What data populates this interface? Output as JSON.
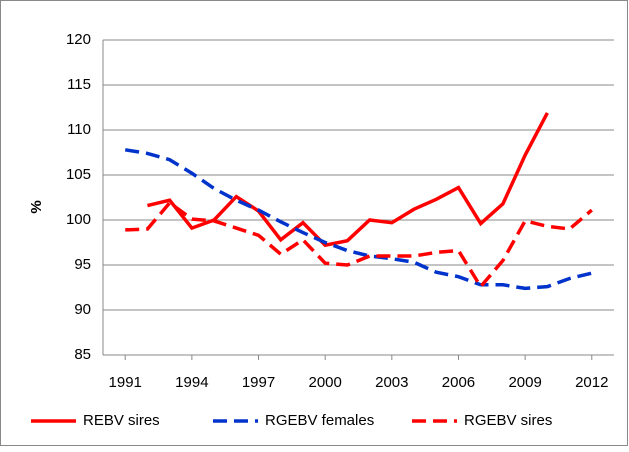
{
  "chart_data": {
    "type": "line",
    "y_label": "%",
    "x": [
      1991,
      1992,
      1993,
      1994,
      1995,
      1996,
      1997,
      1998,
      1999,
      2000,
      2001,
      2002,
      2003,
      2004,
      2005,
      2006,
      2007,
      2008,
      2009,
      2010,
      2011,
      2012
    ],
    "series": [
      {
        "name": "REBV sires",
        "color": "#ff0000",
        "dash": "solid",
        "values": [
          null,
          101.6,
          102.2,
          99.1,
          100,
          102.6,
          101,
          97.8,
          99.7,
          97.2,
          97.7,
          100,
          99.7,
          101.2,
          102.3,
          103.6,
          99.6,
          101.8,
          107.2,
          111.9,
          null,
          null
        ]
      },
      {
        "name": "RGEBV females",
        "color": "#0033cc",
        "dash": "dashed",
        "values": [
          107.8,
          107.4,
          106.7,
          105.2,
          103.5,
          102.2,
          101.1,
          99.8,
          98.6,
          97.5,
          96.6,
          96,
          95.7,
          95.3,
          94.2,
          93.7,
          92.8,
          92.8,
          92.4,
          92.6,
          93.5,
          94.1
        ]
      },
      {
        "name": "RGEBV sires",
        "color": "#ff0000",
        "dash": "dashed",
        "values": [
          98.9,
          99,
          101.9,
          100.1,
          99.9,
          99.1,
          98.3,
          96.2,
          97.8,
          95.2,
          95,
          96,
          96,
          96,
          96.4,
          96.6,
          92.6,
          95.5,
          99.9,
          99.3,
          99,
          101.1
        ]
      }
    ],
    "xlim": [
      1990,
      2013
    ],
    "xticks": [
      1991,
      1994,
      1997,
      2000,
      2003,
      2006,
      2009,
      2012
    ],
    "ylim": [
      85,
      120
    ],
    "yticks": [
      85,
      90,
      95,
      100,
      105,
      110,
      115,
      120
    ],
    "grid": true,
    "legend": "bottom"
  }
}
